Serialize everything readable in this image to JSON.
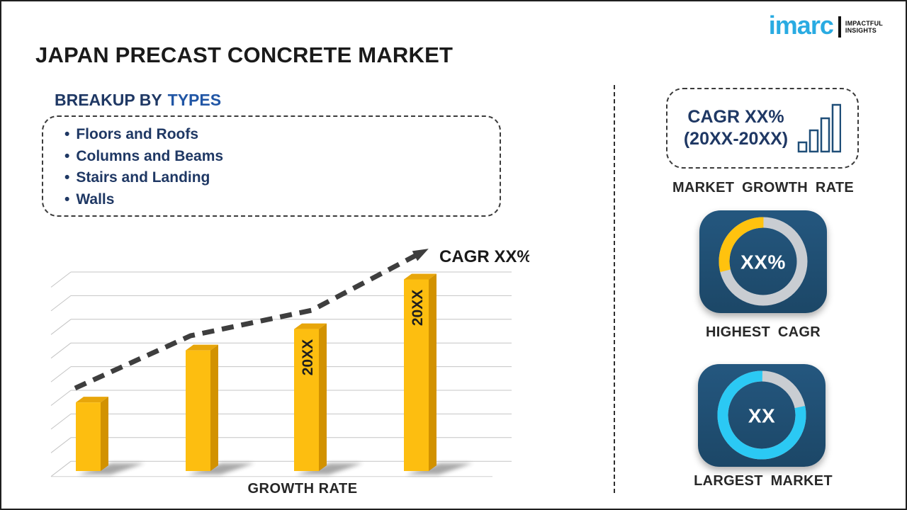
{
  "header": {
    "title": "JAPAN PRECAST CONCRETE MARKET",
    "logo": {
      "brand": "imarc",
      "tagline_line1": "IMPACTFUL",
      "tagline_line2": "INSIGHTS",
      "brand_color": "#29ABE2"
    }
  },
  "breakup": {
    "heading_prefix": "BREAKUP BY",
    "heading_highlight": "TYPES",
    "bullet": "•",
    "items": [
      "Floors and Roofs",
      "Columns and Beams",
      "Stairs and Landing",
      "Walls"
    ]
  },
  "chart_data": [
    {
      "type": "bar",
      "title": "",
      "xlabel": "GROWTH RATE",
      "ylabel": "",
      "categories": [
        "",
        "",
        "20XX",
        "20XX"
      ],
      "values": [
        2.9,
        5.1,
        6.0,
        8.1
      ],
      "values_note": "relative bar heights in gridline units; no numeric axis labels shown",
      "ylim": [
        0,
        8.5
      ],
      "gridline_count": 9,
      "grid": true,
      "legend_position": "none",
      "bar_color": "#FDBE10",
      "bar_side_color": "#D29200",
      "bar_top_color": "#E8A60A",
      "trend_label": "CAGR XX%",
      "trend_style": "dashed rising arrow across bar tops"
    },
    {
      "type": "pie",
      "variant": "donut",
      "center_label": "XX%",
      "caption": "HIGHEST CAGR",
      "segments": [
        {
          "name": "cagr-highlight",
          "fraction": 0.29,
          "color": "#FFC20E",
          "start_deg_from_top": 256
        },
        {
          "name": "remainder",
          "fraction": 0.71,
          "color": "#C9CDD2"
        }
      ]
    },
    {
      "type": "pie",
      "variant": "donut",
      "center_label": "XX",
      "caption": "LARGEST MARKET",
      "segments": [
        {
          "name": "market-share",
          "fraction": 0.785,
          "color": "#2BC9F4",
          "start_deg_from_top": 78
        },
        {
          "name": "remainder",
          "fraction": 0.215,
          "color": "#C9CDD2"
        }
      ]
    }
  ],
  "sidebar": {
    "growth_box": {
      "line1": "CAGR XX%",
      "line2": "(20XX-20XX)",
      "caption": "MARKET GROWTH RATE"
    }
  },
  "colors": {
    "navy_text": "#1F3864",
    "blue_highlight": "#2156A5",
    "tile_background": "#1F4E78",
    "bar_yellow": "#FDBE10",
    "logo_cyan": "#29ABE2",
    "ring_gray": "#C9CDD2",
    "ring_yellow": "#FFC20E",
    "ring_cyan": "#2BC9F4"
  }
}
